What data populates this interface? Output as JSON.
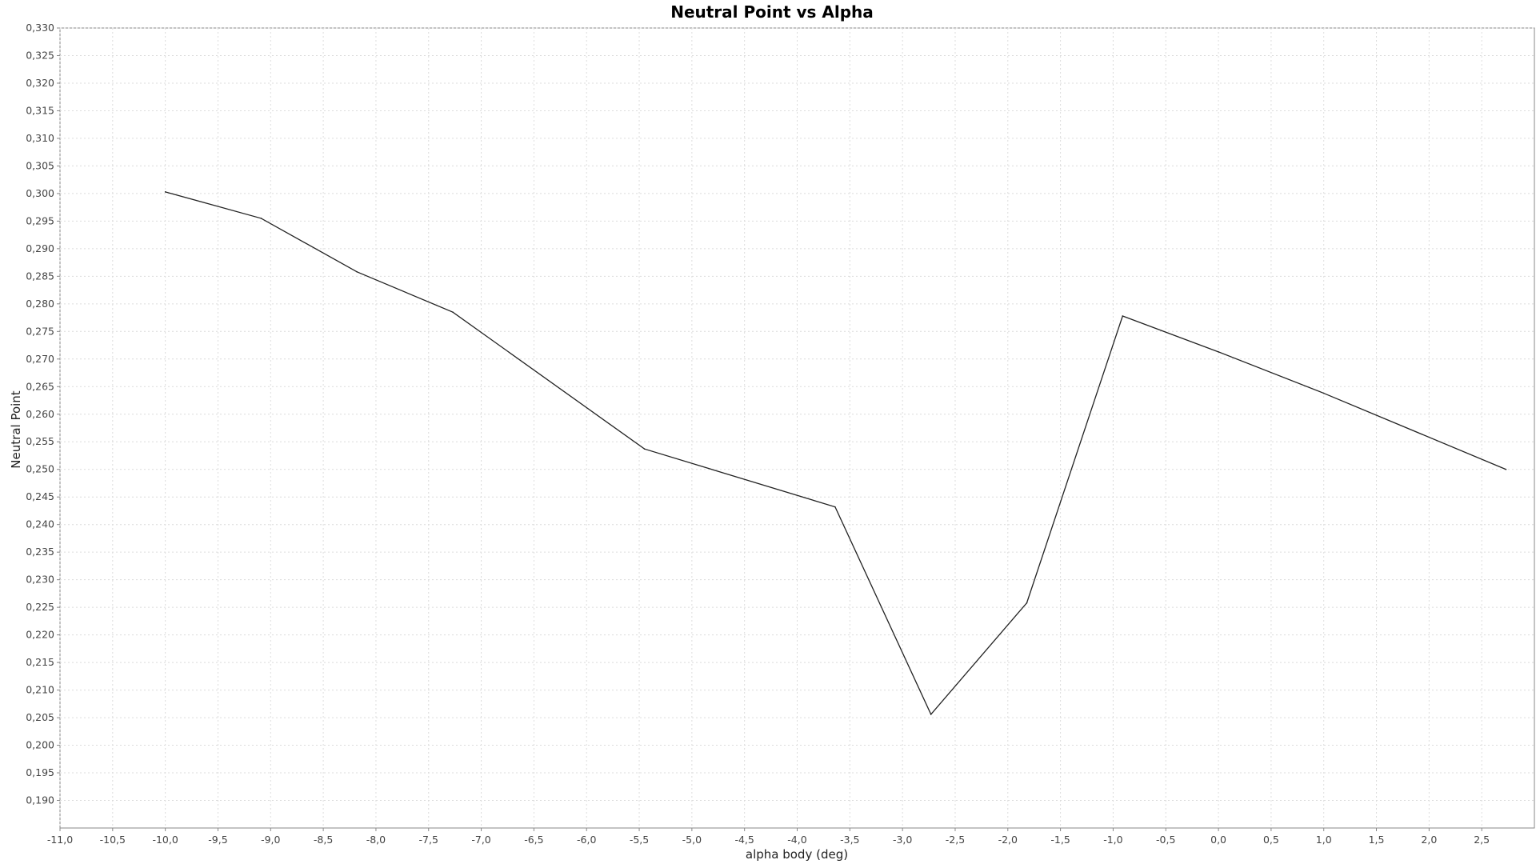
{
  "chart_data": {
    "type": "line",
    "title": "Neutral Point vs Alpha",
    "xlabel": "alpha body (deg)",
    "ylabel": "Neutral Point",
    "xlim": [
      -11.0,
      3.0
    ],
    "ylim": [
      0.185,
      0.33
    ],
    "grid": true,
    "legend": "none",
    "x_ticks": [
      "-11,0",
      "-10,5",
      "-10,0",
      "-9,5",
      "-9,0",
      "-8,5",
      "-8,0",
      "-7,5",
      "-7,0",
      "-6,5",
      "-6,0",
      "-5,5",
      "-5,0",
      "-4,5",
      "-4,0",
      "-3,5",
      "-3,0",
      "-2,5",
      "-2,0",
      "-1,5",
      "-1,0",
      "-0,5",
      "0,0",
      "0,5",
      "1,0",
      "1,5",
      "2,0",
      "2,5"
    ],
    "x_tick_values": [
      -11.0,
      -10.5,
      -10.0,
      -9.5,
      -9.0,
      -8.5,
      -8.0,
      -7.5,
      -7.0,
      -6.5,
      -6.0,
      -5.5,
      -5.0,
      -4.5,
      -4.0,
      -3.5,
      -3.0,
      -2.5,
      -2.0,
      -1.5,
      -1.0,
      -0.5,
      0.0,
      0.5,
      1.0,
      1.5,
      2.0,
      2.5
    ],
    "y_ticks": [
      "0,190",
      "0,195",
      "0,200",
      "0,205",
      "0,210",
      "0,215",
      "0,220",
      "0,225",
      "0,230",
      "0,235",
      "0,240",
      "0,245",
      "0,250",
      "0,255",
      "0,260",
      "0,265",
      "0,270",
      "0,275",
      "0,280",
      "0,285",
      "0,290",
      "0,295",
      "0,300",
      "0,305",
      "0,310",
      "0,315",
      "0,320",
      "0,325",
      "0,330"
    ],
    "y_tick_values": [
      0.19,
      0.195,
      0.2,
      0.205,
      0.21,
      0.215,
      0.22,
      0.225,
      0.23,
      0.235,
      0.24,
      0.245,
      0.25,
      0.255,
      0.26,
      0.265,
      0.27,
      0.275,
      0.28,
      0.285,
      0.29,
      0.295,
      0.3,
      0.305,
      0.31,
      0.315,
      0.32,
      0.325,
      0.33
    ],
    "series": [
      {
        "name": "Neutral Point",
        "color": "#222222",
        "x": [
          -10.0,
          -9.09,
          -8.18,
          -7.27,
          -5.45,
          -3.64,
          -2.73,
          -1.82,
          -0.91,
          0.0,
          1.0,
          2.73
        ],
        "y": [
          0.3003,
          0.2955,
          0.2858,
          0.2785,
          0.2537,
          0.2432,
          0.2056,
          0.2258,
          0.2778,
          0.2713,
          0.2638,
          0.25
        ]
      }
    ]
  }
}
